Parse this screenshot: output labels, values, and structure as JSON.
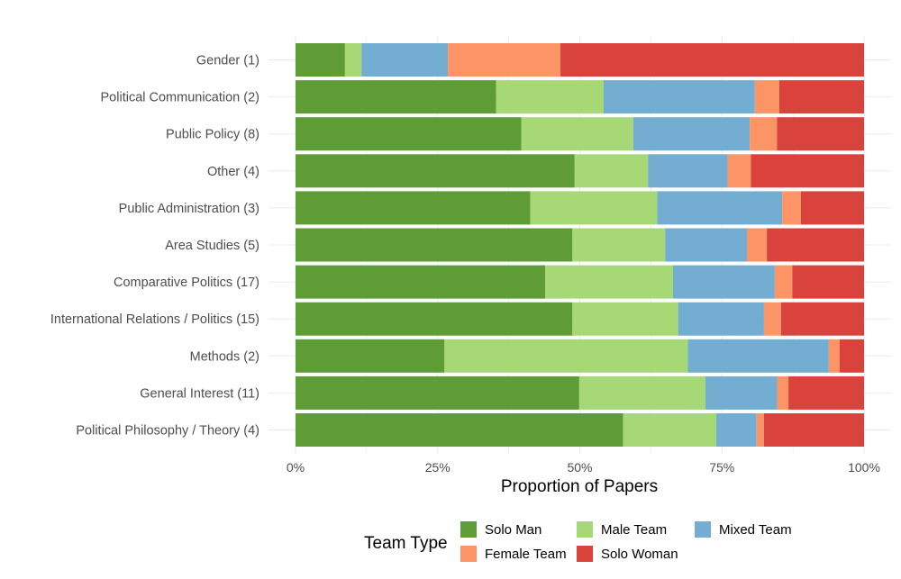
{
  "chart_data": {
    "type": "bar",
    "orientation": "horizontal",
    "stacked": "proportion",
    "xlabel": "Proportion of Papers",
    "ylabel": "",
    "xlim": [
      0,
      100
    ],
    "x_ticks": [
      "0%",
      "25%",
      "50%",
      "75%",
      "100%"
    ],
    "grid": true,
    "legend": {
      "title": "Team Type",
      "placement": "bottom"
    },
    "categories": [
      "Gender (1)",
      "Political Communication (2)",
      "Public Policy (8)",
      "Other (4)",
      "Public Administration (3)",
      "Area Studies (5)",
      "Comparative Politics (17)",
      "International Relations / Politics (15)",
      "Methods (2)",
      "General Interest (11)",
      "Political Philosophy / Theory (4)"
    ],
    "series": [
      {
        "name": "Solo Man",
        "color": "#5e9c36",
        "values": [
          8.7,
          35.3,
          39.7,
          49.1,
          41.3,
          48.7,
          43.9,
          48.7,
          26.2,
          49.9,
          57.6
        ]
      },
      {
        "name": "Male Team",
        "color": "#a6d975",
        "values": [
          2.9,
          18.9,
          19.7,
          12.9,
          22.3,
          16.3,
          22.5,
          18.6,
          42.8,
          22.2,
          16.4
        ]
      },
      {
        "name": "Mixed Team",
        "color": "#73aed2",
        "values": [
          15.2,
          26.6,
          20.5,
          14.0,
          22.0,
          14.4,
          17.9,
          15.1,
          24.8,
          12.6,
          7.1
        ]
      },
      {
        "name": "Female Team",
        "color": "#fb9566",
        "values": [
          19.8,
          4.3,
          4.8,
          4.1,
          3.3,
          3.5,
          3.1,
          3.0,
          1.9,
          2.0,
          1.3
        ]
      },
      {
        "name": "Solo Woman",
        "color": "#d9433b",
        "values": [
          53.4,
          14.9,
          15.3,
          19.9,
          11.1,
          17.1,
          12.6,
          14.6,
          4.3,
          13.3,
          17.6
        ]
      }
    ]
  }
}
